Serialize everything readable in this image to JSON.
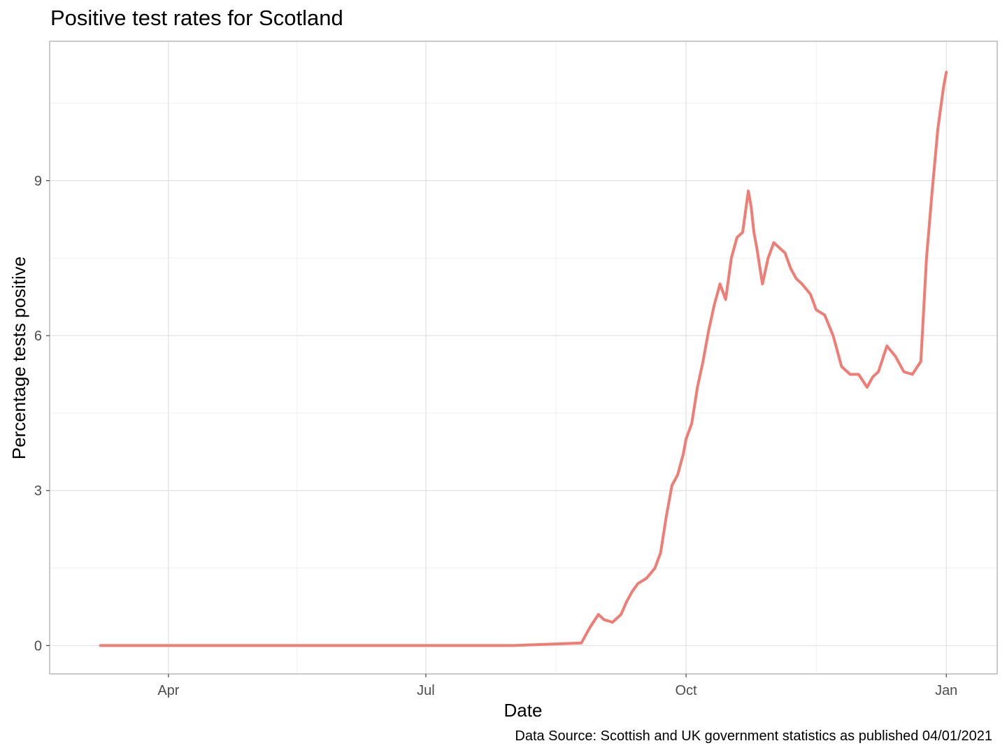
{
  "chart_data": {
    "type": "line",
    "title": "Positive test rates for Scotland",
    "xlabel": "Date",
    "ylabel": "Percentage tests positive",
    "caption": "Data Source: Scottish and UK government statistics as published 04/01/2021",
    "x_tick_labels": [
      "Apr",
      "Jul",
      "Oct",
      "Jan"
    ],
    "x_tick_dates": [
      "2020-04-01",
      "2020-07-01",
      "2020-10-01",
      "2021-01-01"
    ],
    "y_tick_labels": [
      "0",
      "3",
      "6",
      "9"
    ],
    "y_ticks": [
      0,
      3,
      6,
      9
    ],
    "xlim": [
      "2020-02-19",
      "2021-01-19"
    ],
    "ylim": [
      -0.55,
      11.7
    ],
    "grid": true,
    "legend": "none",
    "line_color": "#F07C73",
    "series": [
      {
        "x": [
          "2020-03-08",
          "2020-04-01",
          "2020-05-01",
          "2020-06-01",
          "2020-07-01",
          "2020-08-01",
          "2020-08-25",
          "2020-08-28",
          "2020-08-31",
          "2020-09-02",
          "2020-09-05",
          "2020-09-08",
          "2020-09-10",
          "2020-09-12",
          "2020-09-14",
          "2020-09-17",
          "2020-09-20",
          "2020-09-22",
          "2020-09-24",
          "2020-09-26",
          "2020-09-28",
          "2020-09-30",
          "2020-10-01",
          "2020-10-03",
          "2020-10-05",
          "2020-10-07",
          "2020-10-09",
          "2020-10-11",
          "2020-10-12",
          "2020-10-13",
          "2020-10-15",
          "2020-10-17",
          "2020-10-19",
          "2020-10-21",
          "2020-10-23",
          "2020-10-24",
          "2020-10-25",
          "2020-10-26",
          "2020-10-28",
          "2020-10-30",
          "2020-11-01",
          "2020-11-03",
          "2020-11-05",
          "2020-11-07",
          "2020-11-09",
          "2020-11-11",
          "2020-11-14",
          "2020-11-16",
          "2020-11-19",
          "2020-11-22",
          "2020-11-25",
          "2020-11-28",
          "2020-12-01",
          "2020-12-04",
          "2020-12-06",
          "2020-12-08",
          "2020-12-11",
          "2020-12-14",
          "2020-12-17",
          "2020-12-20",
          "2020-12-23",
          "2020-12-25",
          "2020-12-27",
          "2020-12-29",
          "2020-12-31",
          "2021-01-01"
        ],
        "y": [
          0,
          0,
          0,
          0,
          0,
          0,
          0.05,
          0.35,
          0.6,
          0.5,
          0.45,
          0.6,
          0.85,
          1.05,
          1.2,
          1.3,
          1.5,
          1.8,
          2.5,
          3.1,
          3.3,
          3.7,
          4.0,
          4.3,
          5.0,
          5.5,
          6.1,
          6.6,
          6.8,
          7.0,
          6.7,
          7.5,
          7.9,
          8.0,
          8.8,
          8.5,
          8.0,
          7.7,
          7.0,
          7.5,
          7.8,
          7.7,
          7.6,
          7.3,
          7.1,
          7.0,
          6.8,
          6.5,
          6.4,
          6.0,
          5.4,
          5.25,
          5.25,
          5.0,
          5.2,
          5.3,
          5.8,
          5.6,
          5.3,
          5.25,
          5.5,
          7.5,
          8.8,
          10.0,
          10.8,
          11.1
        ]
      }
    ]
  }
}
